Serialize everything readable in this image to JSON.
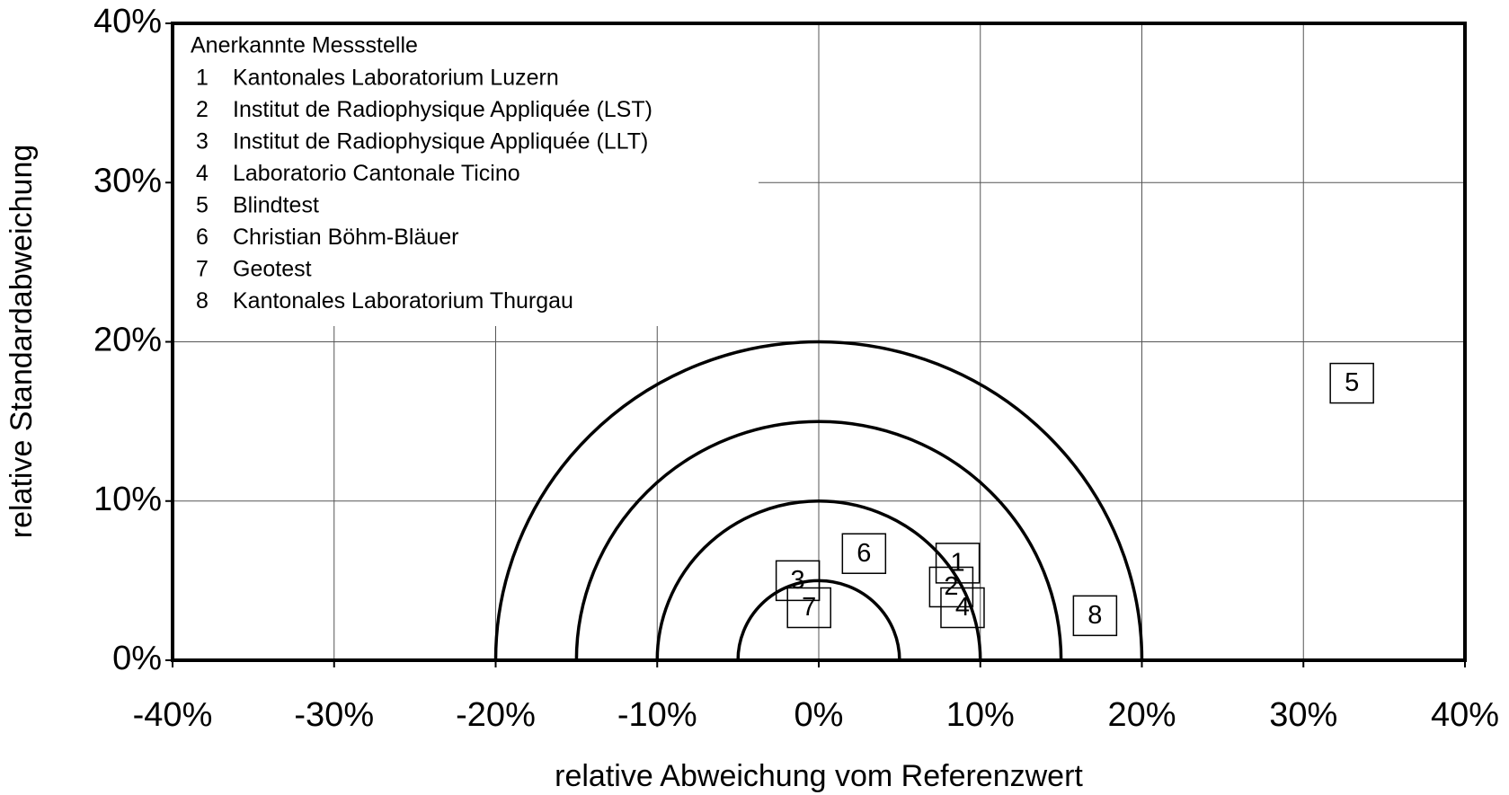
{
  "chart_data": {
    "type": "scatter",
    "xlabel": "relative Abweichung vom Referenzwert",
    "ylabel": "relative Standardabweichung",
    "legend_title": "Anerkannte  Messstelle",
    "xlim": [
      -40,
      40
    ],
    "ylim": [
      0,
      40
    ],
    "xticks": [
      {
        "value": -40,
        "label": "-40%"
      },
      {
        "value": -30,
        "label": "-30%"
      },
      {
        "value": -20,
        "label": "-20%"
      },
      {
        "value": -10,
        "label": "-10%"
      },
      {
        "value": 0,
        "label": "0%"
      },
      {
        "value": 10,
        "label": "10%"
      },
      {
        "value": 20,
        "label": "20%"
      },
      {
        "value": 30,
        "label": "30%"
      },
      {
        "value": 40,
        "label": "40%"
      }
    ],
    "yticks": [
      {
        "value": 0,
        "label": "0%"
      },
      {
        "value": 10,
        "label": "10%"
      },
      {
        "value": 20,
        "label": "20%"
      },
      {
        "value": 30,
        "label": "30%"
      },
      {
        "value": 40,
        "label": "40%"
      }
    ],
    "grid": true,
    "circles": [
      5,
      10,
      15,
      20
    ],
    "points": [
      {
        "label": "1",
        "name": "Kantonales Laboratorium Luzern",
        "x": 8.6,
        "y": 6.1
      },
      {
        "label": "2",
        "name": "Institut de Radiophysique Appliquée (LST)",
        "x": 8.2,
        "y": 4.6
      },
      {
        "label": "3",
        "name": "Institut de Radiophysique Appliquée (LLT)",
        "x": -1.3,
        "y": 5.0
      },
      {
        "label": "4",
        "name": "Laboratorio Cantonale Ticino",
        "x": 8.9,
        "y": 3.3
      },
      {
        "label": "5",
        "name": "Blindtest",
        "x": 33.0,
        "y": 17.4
      },
      {
        "label": "6",
        "name": "Christian Böhm-Bläuer",
        "x": 2.8,
        "y": 6.7
      },
      {
        "label": "7",
        "name": "Geotest",
        "x": -0.6,
        "y": 3.3
      },
      {
        "label": "8",
        "name": "Kantonales Laboratorium Thurgau",
        "x": 17.1,
        "y": 2.8
      }
    ]
  }
}
